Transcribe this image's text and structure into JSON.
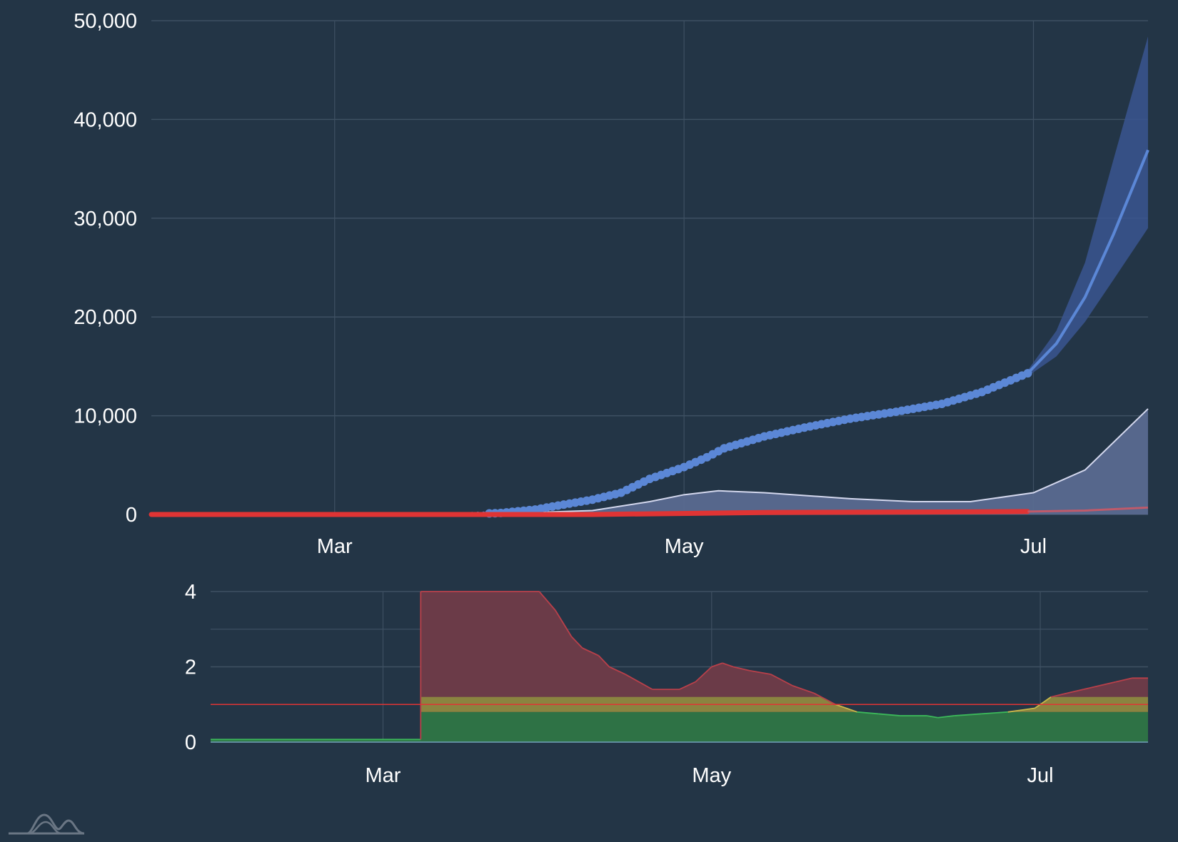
{
  "colors": {
    "background": "#233546",
    "grid": "#3e5062",
    "cases_points": "#5b87d6",
    "cases_projection": "#5b87d6",
    "cases_band": "#3a5590",
    "active": "#5a6a90",
    "active_line": "#d4d8ee",
    "deaths": "#e03434",
    "deaths_projection": "#c05a6a",
    "rt_red": "#6b3b48",
    "rt_yellow": "#8a8440",
    "rt_green": "#2e7245",
    "rt_threshold": "#e03434"
  },
  "logo": {
    "icon": "logo-mountains-icon"
  },
  "chart_data": [
    {
      "type": "line",
      "x_kind": "date",
      "x_domain": [
        "2020-01-29",
        "2020-07-21"
      ],
      "xticks": [
        {
          "date": "2020-03-01",
          "label": "Mar"
        },
        {
          "date": "2020-05-01",
          "label": "May"
        },
        {
          "date": "2020-07-01",
          "label": "Jul"
        }
      ],
      "ylim": [
        0,
        50000
      ],
      "yticks": [
        {
          "value": 0,
          "label": "0"
        },
        {
          "value": 10000,
          "label": "10,000"
        },
        {
          "value": 20000,
          "label": "20,000"
        },
        {
          "value": 30000,
          "label": "30,000"
        },
        {
          "value": 40000,
          "label": "40,000"
        },
        {
          "value": 50000,
          "label": "50,000"
        }
      ],
      "grid": true,
      "series": [
        {
          "key": "cases_observed",
          "style": "points",
          "points": [
            [
              "2020-01-29",
              0
            ],
            [
              "2020-03-20",
              0
            ],
            [
              "2020-03-25",
              50
            ],
            [
              "2020-03-30",
              150
            ],
            [
              "2020-04-05",
              500
            ],
            [
              "2020-04-10",
              1000
            ],
            [
              "2020-04-15",
              1500
            ],
            [
              "2020-04-20",
              2200
            ],
            [
              "2020-04-25",
              3600
            ],
            [
              "2020-05-01",
              4800
            ],
            [
              "2020-05-05",
              5800
            ],
            [
              "2020-05-08",
              6700
            ],
            [
              "2020-05-15",
              7900
            ],
            [
              "2020-05-22",
              8800
            ],
            [
              "2020-05-30",
              9700
            ],
            [
              "2020-06-07",
              10400
            ],
            [
              "2020-06-15",
              11200
            ],
            [
              "2020-06-22",
              12400
            ],
            [
              "2020-06-30",
              14300
            ]
          ]
        },
        {
          "key": "cases_projection",
          "style": "line",
          "points": [
            [
              "2020-06-30",
              14300
            ],
            [
              "2020-07-05",
              17300
            ],
            [
              "2020-07-10",
              22000
            ],
            [
              "2020-07-15",
              28400
            ],
            [
              "2020-07-21",
              36900
            ]
          ]
        },
        {
          "key": "cases_projection_band",
          "style": "band",
          "points": [
            [
              "2020-06-30",
              14000,
              14600
            ],
            [
              "2020-07-05",
              16000,
              18600
            ],
            [
              "2020-07-10",
              19500,
              25500
            ],
            [
              "2020-07-15",
              23800,
              36000
            ],
            [
              "2020-07-21",
              29000,
              48400
            ]
          ]
        },
        {
          "key": "active",
          "style": "area",
          "points": [
            [
              "2020-01-29",
              0
            ],
            [
              "2020-03-25",
              0
            ],
            [
              "2020-04-05",
              200
            ],
            [
              "2020-04-15",
              400
            ],
            [
              "2020-04-25",
              1300
            ],
            [
              "2020-05-01",
              2000
            ],
            [
              "2020-05-07",
              2400
            ],
            [
              "2020-05-15",
              2200
            ],
            [
              "2020-05-30",
              1600
            ],
            [
              "2020-06-10",
              1300
            ],
            [
              "2020-06-20",
              1300
            ],
            [
              "2020-07-01",
              2200
            ],
            [
              "2020-07-10",
              4500
            ],
            [
              "2020-07-21",
              10700
            ]
          ]
        },
        {
          "key": "deaths_observed",
          "style": "thick-line",
          "points": [
            [
              "2020-01-29",
              0
            ],
            [
              "2020-04-15",
              0
            ],
            [
              "2020-05-15",
              200
            ],
            [
              "2020-06-15",
              250
            ],
            [
              "2020-06-30",
              300
            ]
          ]
        },
        {
          "key": "deaths_projection",
          "style": "line",
          "points": [
            [
              "2020-06-30",
              300
            ],
            [
              "2020-07-10",
              400
            ],
            [
              "2020-07-21",
              700
            ]
          ]
        }
      ]
    },
    {
      "type": "area",
      "x_kind": "date",
      "x_domain": [
        "2020-01-29",
        "2020-07-21"
      ],
      "xticks": [
        {
          "date": "2020-03-01",
          "label": "Mar"
        },
        {
          "date": "2020-05-01",
          "label": "May"
        },
        {
          "date": "2020-07-01",
          "label": "Jul"
        }
      ],
      "ylim": [
        0,
        4
      ],
      "yticks": [
        {
          "value": 0,
          "label": "0"
        },
        {
          "value": 2,
          "label": "2"
        },
        {
          "value": 4,
          "label": "4"
        }
      ],
      "grid": true,
      "threshold": 1.0,
      "bands": [
        {
          "key": "yellow",
          "from": 0.8,
          "to": 1.2
        },
        {
          "key": "green",
          "from": 0,
          "to": 0.8
        }
      ],
      "series": [
        {
          "key": "rt",
          "points": [
            [
              "2020-01-29",
              0.07
            ],
            [
              "2020-03-08",
              0.07
            ],
            [
              "2020-03-08",
              4.0
            ],
            [
              "2020-03-30",
              4.0
            ],
            [
              "2020-04-02",
              3.5
            ],
            [
              "2020-04-05",
              2.8
            ],
            [
              "2020-04-07",
              2.5
            ],
            [
              "2020-04-10",
              2.3
            ],
            [
              "2020-04-12",
              2.0
            ],
            [
              "2020-04-15",
              1.8
            ],
            [
              "2020-04-20",
              1.4
            ],
            [
              "2020-04-25",
              1.4
            ],
            [
              "2020-04-28",
              1.6
            ],
            [
              "2020-05-01",
              2.0
            ],
            [
              "2020-05-03",
              2.1
            ],
            [
              "2020-05-05",
              2.0
            ],
            [
              "2020-05-08",
              1.9
            ],
            [
              "2020-05-12",
              1.8
            ],
            [
              "2020-05-16",
              1.5
            ],
            [
              "2020-05-20",
              1.3
            ],
            [
              "2020-05-24",
              1.0
            ],
            [
              "2020-05-28",
              0.8
            ],
            [
              "2020-06-01",
              0.75
            ],
            [
              "2020-06-05",
              0.7
            ],
            [
              "2020-06-10",
              0.7
            ],
            [
              "2020-06-12",
              0.65
            ],
            [
              "2020-06-15",
              0.7
            ],
            [
              "2020-06-20",
              0.75
            ],
            [
              "2020-06-25",
              0.8
            ],
            [
              "2020-06-30",
              0.9
            ],
            [
              "2020-07-03",
              1.2
            ],
            [
              "2020-07-06",
              1.3
            ],
            [
              "2020-07-09",
              1.4
            ],
            [
              "2020-07-12",
              1.5
            ],
            [
              "2020-07-15",
              1.6
            ],
            [
              "2020-07-18",
              1.7
            ],
            [
              "2020-07-21",
              1.7
            ]
          ]
        }
      ]
    }
  ]
}
